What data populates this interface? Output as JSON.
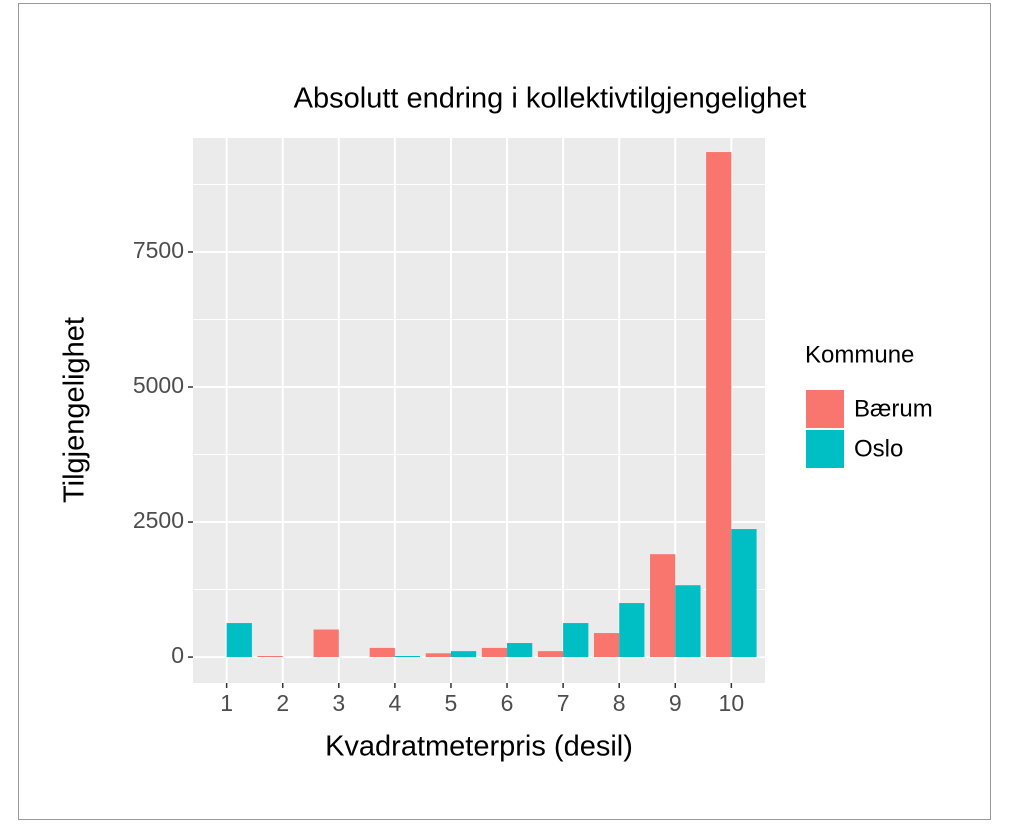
{
  "chart_data": {
    "type": "bar",
    "title": "Absolutt endring i kollektivtilgjengelighet",
    "x_label": "Kvadratmeterpris (desil)",
    "y_label": "Tilgjengelighet",
    "legend_title": "Kommune",
    "categories": [
      "1",
      "2",
      "3",
      "4",
      "5",
      "6",
      "7",
      "8",
      "9",
      "10"
    ],
    "series": [
      {
        "name": "Bærum",
        "color": "#f8766d",
        "values": [
          0,
          20,
          510,
          170,
          70,
          170,
          110,
          445,
          1905,
          9350
        ]
      },
      {
        "name": "Oslo",
        "color": "#00bfc4",
        "values": [
          630,
          0,
          0,
          20,
          110,
          260,
          630,
          1000,
          1330,
          2370
        ]
      }
    ],
    "ylim": [
      -480,
      9610
    ],
    "yticks": [
      0,
      2500,
      5000,
      7500
    ],
    "grid": true
  }
}
